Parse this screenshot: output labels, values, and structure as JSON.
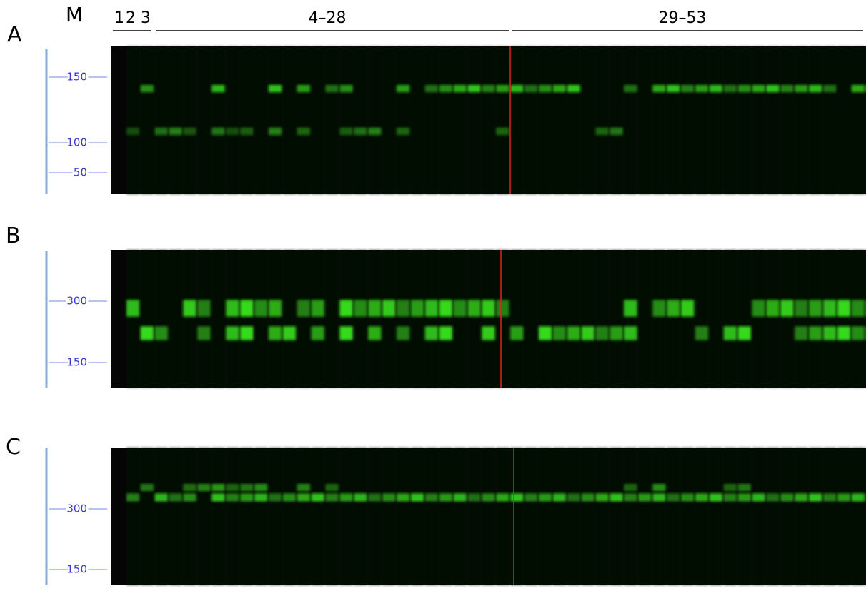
{
  "header": {
    "marker": "M",
    "lanes": [
      "1",
      "2",
      "3"
    ],
    "groups": [
      "4–28",
      "29–53"
    ]
  },
  "panels": [
    {
      "label": "A",
      "markers": [
        "150",
        "100",
        "50"
      ]
    },
    {
      "label": "B",
      "markers": [
        "300",
        "150"
      ]
    },
    {
      "label": "C",
      "markers": [
        "300",
        "150"
      ]
    }
  ]
}
